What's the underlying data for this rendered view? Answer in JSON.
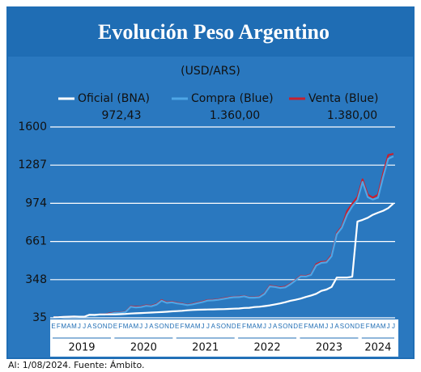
{
  "chart_data": {
    "type": "line",
    "title": "Evolución Peso Argentino",
    "subtitle": "(USD/ARS)",
    "footer": "Al: 1/08/2024. Fuente: Ámbito.",
    "categories": [
      "E",
      "F",
      "M",
      "A",
      "M",
      "J",
      "J",
      "A",
      "S",
      "O",
      "N",
      "D",
      "E",
      "F",
      "M",
      "A",
      "M",
      "J",
      "J",
      "A",
      "S",
      "O",
      "N",
      "D",
      "E",
      "F",
      "M",
      "A",
      "M",
      "J",
      "J",
      "A",
      "S",
      "O",
      "N",
      "D",
      "E",
      "F",
      "M",
      "A",
      "M",
      "J",
      "J",
      "A",
      "S",
      "O",
      "N",
      "D",
      "E",
      "F",
      "M",
      "A",
      "M",
      "J",
      "J",
      "A",
      "S",
      "O",
      "N",
      "D",
      "E",
      "F",
      "M",
      "A",
      "M",
      "J",
      "J"
    ],
    "years": [
      "2019",
      "2020",
      "2021",
      "2022",
      "2023",
      "2024"
    ],
    "series": [
      {
        "name": "Venta (Blue)",
        "color": "#c8202e",
        "values": [
          38,
          40,
          43,
          44,
          45,
          43,
          44,
          58,
          57,
          63,
          63,
          73,
          78,
          79,
          85,
          130,
          125,
          127,
          137,
          134,
          147,
          180,
          162,
          166,
          157,
          152,
          142,
          150,
          160,
          169,
          181,
          182,
          186,
          194,
          202,
          207,
          208,
          215,
          203,
          203,
          208,
          237,
          298,
          292,
          285,
          290,
          315,
          346,
          381,
          378,
          392,
          474,
          494,
          497,
          550,
          730,
          785,
          910,
          970,
          1025,
          1170,
          1045,
          1020,
          1045,
          1220,
          1370,
          1380
        ],
        "value_labels": [
          null,
          null,
          null,
          null,
          null,
          null,
          null,
          null,
          null,
          null,
          null,
          null,
          null,
          null,
          null,
          null,
          null,
          null,
          null,
          null,
          null,
          null,
          null,
          null,
          null,
          null,
          null,
          null,
          null,
          null,
          null,
          null,
          null,
          null,
          null,
          null,
          null,
          null,
          null,
          null,
          null,
          null,
          null,
          null,
          null,
          null,
          null,
          null,
          null,
          null,
          null,
          null,
          null,
          null,
          null,
          null,
          null,
          null,
          null,
          null,
          null,
          null,
          null,
          null,
          null,
          null,
          "1.380,00"
        ]
      },
      {
        "name": "Compra (Blue)",
        "color": "#4ea6e6",
        "values": [
          37,
          39,
          42,
          43,
          44,
          42,
          43,
          56,
          55,
          61,
          61,
          68,
          76,
          77,
          83,
          126,
          120,
          123,
          133,
          130,
          143,
          175,
          158,
          162,
          153,
          148,
          139,
          146,
          156,
          165,
          177,
          178,
          183,
          190,
          198,
          204,
          205,
          212,
          200,
          200,
          204,
          232,
          293,
          288,
          280,
          285,
          310,
          342,
          376,
          374,
          387,
          464,
          486,
          490,
          540,
          720,
          775,
          880,
          950,
          1000,
          1150,
          1025,
          1005,
          1020,
          1190,
          1340,
          1360
        ],
        "value_labels": [
          null,
          null,
          null,
          null,
          null,
          null,
          null,
          null,
          null,
          null,
          null,
          null,
          null,
          null,
          null,
          null,
          null,
          null,
          null,
          null,
          null,
          null,
          null,
          null,
          null,
          null,
          null,
          null,
          null,
          null,
          null,
          null,
          null,
          null,
          null,
          null,
          null,
          null,
          null,
          null,
          null,
          null,
          null,
          null,
          null,
          null,
          null,
          null,
          null,
          null,
          null,
          null,
          null,
          null,
          null,
          null,
          null,
          null,
          null,
          null,
          null,
          null,
          null,
          null,
          null,
          null,
          "1.360,00"
        ]
      },
      {
        "name": "Oficial (BNA)",
        "color": "#ffffff",
        "values": [
          39,
          40,
          43,
          44,
          46,
          44,
          44,
          60,
          59,
          63,
          63,
          63,
          63,
          65,
          67,
          70,
          72,
          74,
          76,
          78,
          80,
          82,
          85,
          88,
          90,
          93,
          97,
          99,
          101,
          102,
          103,
          104,
          105,
          106,
          108,
          110,
          111,
          116,
          117,
          123,
          126,
          131,
          137,
          145,
          153,
          163,
          175,
          183,
          193,
          206,
          218,
          232,
          256,
          267,
          288,
          365,
          365,
          365,
          372,
          825,
          838,
          855,
          880,
          897,
          913,
          935,
          972.43
        ],
        "value_labels": [
          null,
          null,
          null,
          null,
          null,
          null,
          null,
          null,
          null,
          null,
          null,
          null,
          null,
          null,
          null,
          null,
          null,
          null,
          null,
          null,
          null,
          null,
          null,
          null,
          null,
          null,
          null,
          null,
          null,
          null,
          null,
          null,
          null,
          null,
          null,
          null,
          null,
          null,
          null,
          null,
          null,
          null,
          null,
          null,
          null,
          null,
          null,
          null,
          null,
          null,
          null,
          null,
          null,
          null,
          null,
          null,
          null,
          null,
          null,
          null,
          null,
          null,
          null,
          null,
          null,
          null,
          "972,43"
        ]
      }
    ],
    "ylim": [
      35,
      1600
    ],
    "yticks": [
      35,
      348,
      661,
      974,
      1287,
      1600
    ],
    "grid": true
  }
}
